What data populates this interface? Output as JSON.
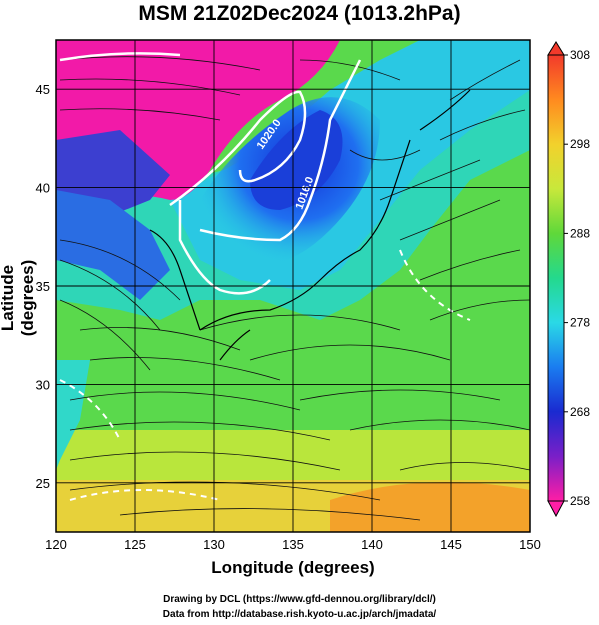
{
  "title": "MSM 21Z02Dec2024 (1013.2hPa)",
  "xlabel": "Longitude (degrees)",
  "ylabel": "Latitude  (degrees)",
  "credits": {
    "line1": "Drawing by DCL (https://www.gfd-dennou.org/library/dcl/)",
    "line2": "Data from http://database.rish.kyoto-u.ac.jp/arch/jmadata/"
  },
  "map": {
    "lon_range": [
      120,
      150
    ],
    "lat_range": [
      22.5,
      47.5
    ],
    "x_ticks": [
      "120",
      "125",
      "130",
      "135",
      "140",
      "145",
      "150"
    ],
    "y_ticks": [
      "25",
      "30",
      "35",
      "40",
      "45"
    ],
    "contour_labels": [
      "1020.0",
      "1016.0"
    ],
    "field": "temperature",
    "overlay": "streamlines"
  },
  "colorbar": {
    "range": [
      258,
      308
    ],
    "ticks": [
      "308",
      "298",
      "288",
      "278",
      "268",
      "258"
    ],
    "colors": [
      "#f23a2b",
      "#ff8a1f",
      "#f2d12c",
      "#c8e83b",
      "#5fd83a",
      "#24d98d",
      "#2ad9e6",
      "#1a7cf0",
      "#1a2ad0",
      "#7a1fc8",
      "#ff1ea5"
    ]
  }
}
